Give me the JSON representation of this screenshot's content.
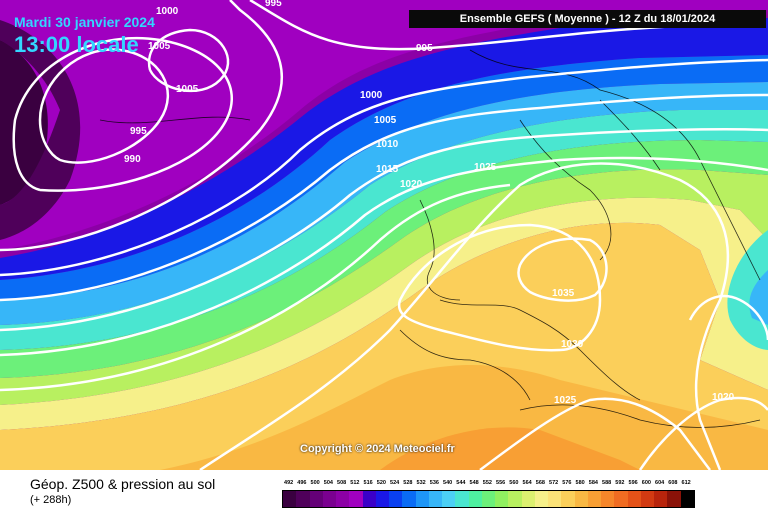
{
  "header": {
    "date": "Mardi 30 janvier 2024",
    "local_time": "13:00 locale",
    "run": "Ensemble GEFS  ( Moyenne )  -  12 Z du 18/01/2024"
  },
  "copyright": "Copyright © 2024 Meteociel.fr",
  "footer": {
    "title": "Géop. Z500 & pression au sol",
    "subtitle": "(+ 288h)"
  },
  "isobars": {
    "labels": [
      "995",
      "1000",
      "1005",
      "990",
      "995",
      "1005",
      "1000",
      "1005",
      "1010",
      "1015",
      "1020",
      "1025",
      "1035",
      "1030",
      "1025",
      "1020"
    ]
  },
  "legend": {
    "values": [
      "492",
      "496",
      "500",
      "504",
      "508",
      "512",
      "516",
      "520",
      "524",
      "528",
      "532",
      "536",
      "540",
      "544",
      "548",
      "552",
      "556",
      "560",
      "564",
      "568",
      "572",
      "576",
      "580",
      "584",
      "588",
      "592",
      "596",
      "600",
      "604",
      "608",
      "612"
    ],
    "colors": [
      "#3a0040",
      "#4f005a",
      "#650078",
      "#7a0090",
      "#8c00a6",
      "#a000c0",
      "#3b00c8",
      "#1a18e6",
      "#0a40f0",
      "#0a6cf5",
      "#1e96f7",
      "#37b6f8",
      "#4cd0f5",
      "#4ae6d0",
      "#4ef0a0",
      "#6cf07a",
      "#90f060",
      "#b8f060",
      "#dcf070",
      "#f6f08a",
      "#fbe278",
      "#fbcf5a",
      "#f9b843",
      "#f89f34",
      "#f6862a",
      "#f06c22",
      "#e45218",
      "#d23a12",
      "#b8240c",
      "#8a1208",
      "#000000"
    ]
  },
  "colors": {
    "isobar": "#ffffff",
    "banner_bg": "#0a0a0a",
    "date_text": "#33d6ff"
  }
}
